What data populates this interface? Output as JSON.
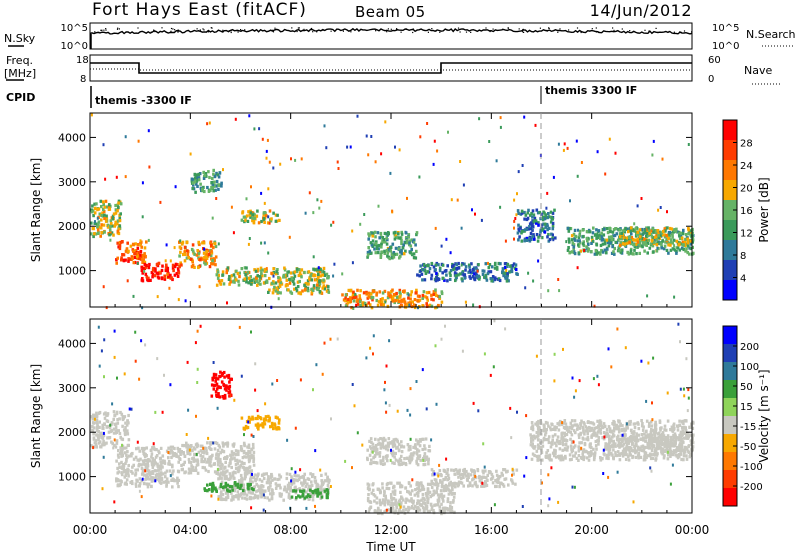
{
  "header": {
    "station": "Fort Hays East (fitACF)",
    "beam": "Beam 05",
    "date": "14/Jun/2012"
  },
  "aux": {
    "nsky_label": "N.Sky",
    "nsky_ticks": [
      "10^5",
      "10^0"
    ],
    "nsearch_label": "N.Search",
    "nsearch_ticks": [
      "10^5",
      "10^0"
    ],
    "freq_label_1": "Freq.",
    "freq_label_2": "[MHz]",
    "freq_ticks": [
      "18",
      "8"
    ],
    "nave_label": "Nave",
    "nave_ticks": [
      "60",
      "0"
    ],
    "cpid_label": "CPID",
    "cpid_entries": [
      {
        "text": "themis -3300 IF",
        "time_h": 0
      },
      {
        "text": "themis 3300 IF",
        "time_h": 18
      }
    ]
  },
  "colors": {
    "power": [
      "#0000ff",
      "#1f3fb4",
      "#2f7a9a",
      "#3a9a5a",
      "#66b366",
      "#f7a800",
      "#ff7800",
      "#ff3c00",
      "#ff0000"
    ],
    "velocity": [
      "#0000ff",
      "#1f3fb4",
      "#2f7a9a",
      "#3aa03a",
      "#8fd45a",
      "#c8c8c0",
      "#f7a800",
      "#ff7800",
      "#ff3c00",
      "#ff0000"
    ],
    "ground_scatter": "#c8c8c0"
  },
  "chart_data": [
    {
      "type": "heatmap",
      "name": "power",
      "xlabel": "Time UT",
      "ylabel": "Slant Range [km]",
      "xlim_hours": [
        0,
        24
      ],
      "ylim": [
        180,
        4550
      ],
      "x_ticks": [
        "00:00",
        "04:00",
        "08:00",
        "12:00",
        "16:00",
        "20:00",
        "00:00"
      ],
      "y_ticks": [
        1000,
        2000,
        3000,
        4000
      ],
      "colorbar": {
        "label": "Power [dB]",
        "ticks": [
          "28",
          "24",
          "20",
          "16",
          "12",
          "8",
          "4"
        ],
        "range": [
          0,
          30
        ]
      },
      "regions": [
        {
          "t0": 0.0,
          "t1": 1.2,
          "r0": 1800,
          "r1": 2600,
          "value": 16
        },
        {
          "t0": 1.0,
          "t1": 2.2,
          "r0": 1200,
          "r1": 1700,
          "value": 24
        },
        {
          "t0": 2.0,
          "t1": 3.5,
          "r0": 800,
          "r1": 1200,
          "value": 28
        },
        {
          "t0": 3.5,
          "t1": 5.0,
          "r0": 1100,
          "r1": 1700,
          "value": 20
        },
        {
          "t0": 5.0,
          "t1": 7.0,
          "r0": 700,
          "r1": 1100,
          "value": 16
        },
        {
          "t0": 7.0,
          "t1": 9.5,
          "r0": 500,
          "r1": 1100,
          "value": 16
        },
        {
          "t0": 10.0,
          "t1": 14.0,
          "r0": 200,
          "r1": 600,
          "value": 20
        },
        {
          "t0": 11.0,
          "t1": 13.0,
          "r0": 1300,
          "r1": 1900,
          "value": 12
        },
        {
          "t0": 13.0,
          "t1": 17.0,
          "r0": 800,
          "r1": 1200,
          "value": 8
        },
        {
          "t0": 17.0,
          "t1": 18.5,
          "r0": 1700,
          "r1": 2400,
          "value": 8
        },
        {
          "t0": 19.0,
          "t1": 24.0,
          "r0": 1400,
          "r1": 2000,
          "value": 12
        },
        {
          "t0": 21.0,
          "t1": 24.0,
          "r0": 1600,
          "r1": 2000,
          "value": 16
        },
        {
          "t0": 4.0,
          "t1": 5.2,
          "r0": 2800,
          "r1": 3300,
          "value": 12
        },
        {
          "t0": 6.0,
          "t1": 7.5,
          "r0": 2100,
          "r1": 2400,
          "value": 16
        }
      ]
    },
    {
      "type": "heatmap",
      "name": "velocity",
      "xlabel": "Time UT",
      "ylabel": "Slant Range [km]",
      "xlim_hours": [
        0,
        24
      ],
      "ylim": [
        180,
        4550
      ],
      "x_ticks": [
        "00:00",
        "04:00",
        "08:00",
        "12:00",
        "16:00",
        "20:00",
        "00:00"
      ],
      "y_ticks": [
        1000,
        2000,
        3000,
        4000
      ],
      "colorbar": {
        "label": "Velocity [m s⁻¹]",
        "ticks": [
          "200",
          "100",
          "50",
          "15",
          "-15",
          "-50",
          "-100",
          "-200"
        ],
        "range": [
          -250,
          250
        ]
      },
      "regions": [
        {
          "t0": 0.0,
          "t1": 1.5,
          "r0": 1700,
          "r1": 2500,
          "value": 0
        },
        {
          "t0": 1.0,
          "t1": 3.5,
          "r0": 800,
          "r1": 1700,
          "value": 0
        },
        {
          "t0": 3.5,
          "t1": 6.5,
          "r0": 1100,
          "r1": 1800,
          "value": 0
        },
        {
          "t0": 5.0,
          "t1": 9.5,
          "r0": 500,
          "r1": 1100,
          "value": 0
        },
        {
          "t0": 4.8,
          "t1": 5.6,
          "r0": 2800,
          "r1": 3400,
          "value": -220
        },
        {
          "t0": 6.0,
          "t1": 7.5,
          "r0": 2100,
          "r1": 2400,
          "value": -60
        },
        {
          "t0": 4.5,
          "t1": 6.5,
          "r0": 700,
          "r1": 900,
          "value": 60
        },
        {
          "t0": 8.0,
          "t1": 9.5,
          "r0": 550,
          "r1": 750,
          "value": 60
        },
        {
          "t0": 11.0,
          "t1": 13.5,
          "r0": 1300,
          "r1": 1900,
          "value": 0
        },
        {
          "t0": 11.0,
          "t1": 14.5,
          "r0": 200,
          "r1": 900,
          "value": 0
        },
        {
          "t0": 13.5,
          "t1": 17.0,
          "r0": 800,
          "r1": 1200,
          "value": 0
        },
        {
          "t0": 17.5,
          "t1": 24.0,
          "r0": 1400,
          "r1": 2300,
          "value": 0
        },
        {
          "t0": 20.5,
          "t1": 24.0,
          "r0": 1500,
          "r1": 2000,
          "value": 0
        }
      ]
    }
  ]
}
